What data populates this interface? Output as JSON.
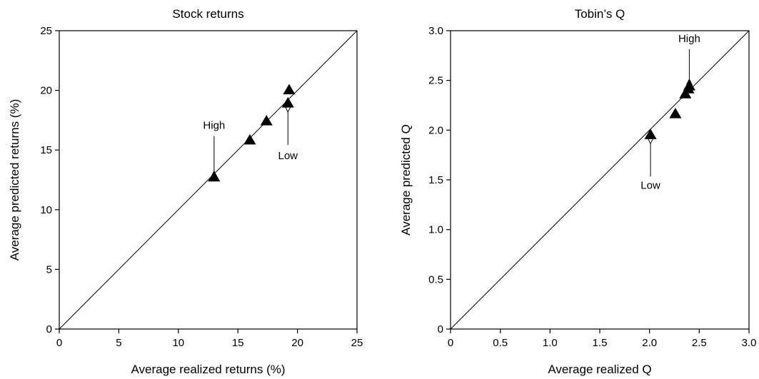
{
  "chart_data": [
    {
      "type": "scatter",
      "title": "Stock returns",
      "xlabel": "Average realized returns (%)",
      "ylabel": "Average predicted returns (%)",
      "xlim": [
        0,
        25
      ],
      "ylim": [
        0,
        25
      ],
      "xticks": [
        "0",
        "5",
        "10",
        "15",
        "20",
        "25"
      ],
      "yticks": [
        "0",
        "5",
        "10",
        "15",
        "20",
        "25"
      ],
      "grid": false,
      "reference_line": "45-degree",
      "series": [
        {
          "marker": "triangle",
          "points": [
            {
              "x": 13.0,
              "y": 12.7
            },
            {
              "x": 16.0,
              "y": 15.8
            },
            {
              "x": 17.4,
              "y": 17.4
            },
            {
              "x": 19.2,
              "y": 18.9
            },
            {
              "x": 19.3,
              "y": 20.0
            }
          ]
        }
      ],
      "annotations": [
        {
          "text": "High",
          "target": {
            "x": 13.0,
            "y": 12.7
          }
        },
        {
          "text": "Low",
          "target": {
            "x": 19.2,
            "y": 18.9
          }
        }
      ]
    },
    {
      "type": "scatter",
      "title": "Tobin’s Q",
      "xlabel": "Average realized Q",
      "ylabel": "Average predicted Q",
      "xlim": [
        0,
        3.0
      ],
      "ylim": [
        0,
        3.0
      ],
      "xticks": [
        "0",
        "0.5",
        "1.0",
        "1.5",
        "2.0",
        "2.5",
        "3.0"
      ],
      "yticks": [
        "0",
        "0.5",
        "1.0",
        "1.5",
        "2.0",
        "2.5",
        "3.0"
      ],
      "grid": false,
      "reference_line": "45-degree",
      "series": [
        {
          "marker": "triangle",
          "points": [
            {
              "x": 2.01,
              "y": 1.95
            },
            {
              "x": 2.26,
              "y": 2.16
            },
            {
              "x": 2.36,
              "y": 2.36
            },
            {
              "x": 2.39,
              "y": 2.41
            },
            {
              "x": 2.4,
              "y": 2.44
            }
          ]
        }
      ],
      "annotations": [
        {
          "text": "High",
          "target": {
            "x": 2.4,
            "y": 2.44
          }
        },
        {
          "text": "Low",
          "target": {
            "x": 2.01,
            "y": 1.95
          }
        }
      ]
    }
  ]
}
